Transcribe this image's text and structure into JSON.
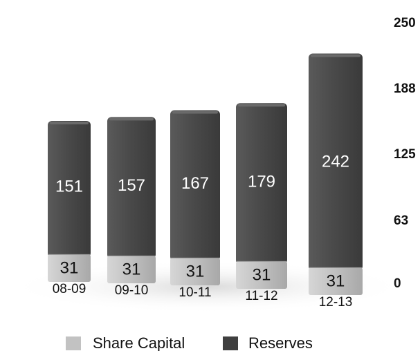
{
  "chart_data": {
    "type": "bar",
    "stacked": true,
    "categories": [
      "08-09",
      "09-10",
      "10-11",
      "11-12",
      "12-13"
    ],
    "series": [
      {
        "name": "Share Capital",
        "values": [
          31,
          31,
          31,
          31,
          31
        ]
      },
      {
        "name": "Reserves",
        "values": [
          151,
          157,
          167,
          179,
          242
        ]
      }
    ],
    "y_ticks": [
      "250",
      "188",
      "125",
      "63",
      "0"
    ],
    "y_axis_side": "right",
    "legend_position": "bottom-center",
    "grid": false,
    "colors": {
      "share_capital": "#c2c2c2",
      "reserves": "#4b4b4b",
      "label_on_dark": "#ffffff",
      "label_on_light": "#111111"
    }
  }
}
